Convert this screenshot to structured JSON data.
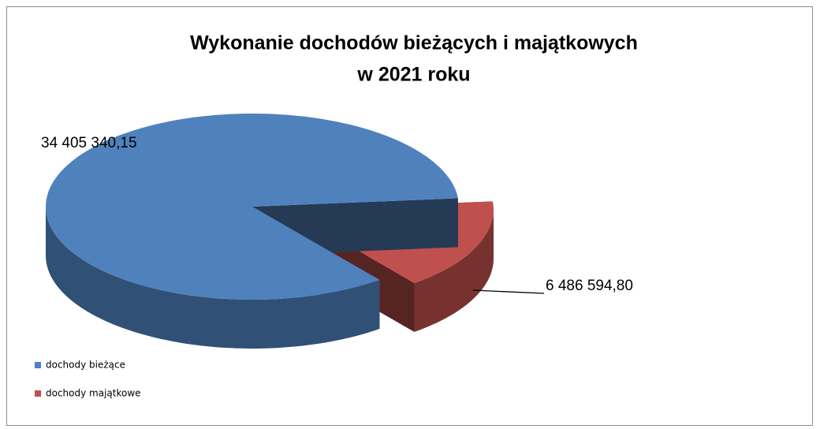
{
  "chart_data": {
    "type": "pie",
    "title": [
      "Wykonanie dochodów  bieżących i majątkowych",
      "w 2021 roku"
    ],
    "categories": [
      "dochody bieżące",
      "dochody majątkowe"
    ],
    "values": [
      34405340.15,
      6486594.8
    ],
    "value_labels": [
      "34 405 340,15",
      "6 486 594,80"
    ],
    "colors": [
      "#4f81bd",
      "#c0504d"
    ],
    "legend": "left"
  }
}
